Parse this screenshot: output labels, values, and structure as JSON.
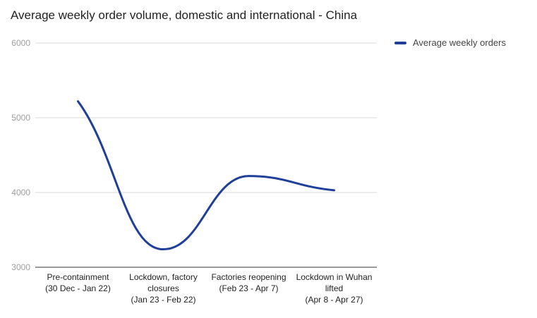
{
  "chart_data": {
    "type": "line",
    "title": "Average weekly order volume, domestic and international - China",
    "categories": [
      [
        "Pre-containment",
        "(30 Dec - Jan 22)"
      ],
      [
        "Lockdown, factory",
        "closures",
        "(Jan 23 - Feb 22)"
      ],
      [
        "Factories reopening",
        "(Feb 23 - Apr 7)"
      ],
      [
        "Lockdown in Wuhan",
        "lifted",
        "(Apr 8 - Apr 27)"
      ]
    ],
    "series": [
      {
        "name": "Average weekly orders",
        "values": [
          5220,
          3240,
          4220,
          4030
        ],
        "color": "#1f3f99"
      }
    ],
    "ylim": [
      3000,
      6000
    ],
    "yticks": [
      3000,
      4000,
      5000,
      6000
    ],
    "grid": true,
    "legend_position": "right",
    "smooth": true
  }
}
